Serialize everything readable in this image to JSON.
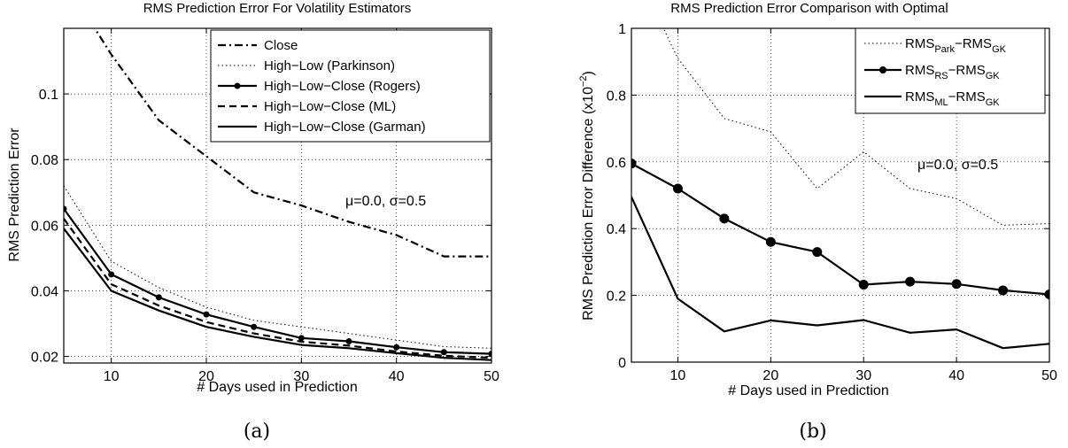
{
  "chart_data": [
    {
      "type": "line",
      "title": "RMS Prediction Error For Volatility Estimators",
      "xlabel": "# Days used in Prediction",
      "ylabel": "RMS Prediction Error",
      "xlim": [
        5,
        50
      ],
      "ylim": [
        0.018,
        0.12
      ],
      "xticks": [
        10,
        20,
        30,
        40,
        50
      ],
      "yticks": [
        0.02,
        0.04,
        0.06,
        0.08,
        0.1
      ],
      "ytick_labels": [
        "0.02",
        "0.04",
        "0.06",
        "0.08",
        "0.1"
      ],
      "grid": true,
      "legend_position": "top-right",
      "annotation": "μ=0.0, σ=0.5",
      "caption": "(a)",
      "x": [
        5,
        10,
        15,
        20,
        25,
        30,
        35,
        40,
        45,
        50
      ],
      "series": [
        {
          "name": "Close",
          "style": "dashdot",
          "marker": false,
          "color": "#000000",
          "values": [
            0.135,
            0.112,
            0.092,
            0.081,
            0.07,
            0.066,
            0.061,
            0.057,
            0.0505,
            0.0505
          ]
        },
        {
          "name": "High−Low (Parkinson)",
          "style": "dotted",
          "marker": false,
          "color": "#000000",
          "values": [
            0.072,
            0.049,
            0.041,
            0.035,
            0.031,
            0.029,
            0.027,
            0.025,
            0.023,
            0.0225
          ]
        },
        {
          "name": "High−Low−Close (Rogers)",
          "style": "solid",
          "marker": true,
          "color": "#000000",
          "values": [
            0.065,
            0.045,
            0.038,
            0.0328,
            0.029,
            0.0256,
            0.0246,
            0.0228,
            0.0213,
            0.0208
          ]
        },
        {
          "name": "High−Low−Close (ML)",
          "style": "dashed",
          "marker": false,
          "color": "#000000",
          "values": [
            0.062,
            0.042,
            0.0355,
            0.0305,
            0.027,
            0.0245,
            0.0233,
            0.0215,
            0.0202,
            0.0196
          ]
        },
        {
          "name": "High−Low−Close (Garman)",
          "style": "solid",
          "marker": false,
          "color": "#000000",
          "values": [
            0.059,
            0.04,
            0.034,
            0.029,
            0.026,
            0.0235,
            0.0225,
            0.021,
            0.0196,
            0.0189
          ]
        }
      ]
    },
    {
      "type": "line",
      "title": "RMS Prediction Error Comparison with Optimal",
      "xlabel": "# Days used in Prediction",
      "ylabel": "RMS Prediction Error Difference (x10",
      "ylabel_exponent": "−2",
      "ylabel_close": ")",
      "xlim": [
        5,
        50
      ],
      "ylim": [
        0,
        1
      ],
      "xticks": [
        10,
        20,
        30,
        40,
        50
      ],
      "yticks": [
        0,
        0.2,
        0.4,
        0.6,
        0.8,
        1
      ],
      "ytick_labels": [
        "0",
        "0.2",
        "0.4",
        "0.6",
        "0.8",
        "1"
      ],
      "grid": true,
      "legend_position": "top-right",
      "annotation": "μ=0.0, σ=0.5",
      "caption": "(b)",
      "x": [
        5,
        10,
        15,
        20,
        25,
        30,
        35,
        40,
        45,
        50
      ],
      "series": [
        {
          "name": "RMS_Park−RMS_GK",
          "legend": {
            "base": "RMS",
            "sub1": "Park",
            "mid": "−RMS",
            "sub2": "GK"
          },
          "style": "dotted",
          "marker": false,
          "color": "#000000",
          "values": [
            1.2,
            0.91,
            0.73,
            0.69,
            0.52,
            0.63,
            0.52,
            0.49,
            0.41,
            0.415
          ]
        },
        {
          "name": "RMS_RS−RMS_GK",
          "legend": {
            "base": "RMS",
            "sub1": "RS",
            "mid": "−RMS",
            "sub2": "GK"
          },
          "style": "solid",
          "marker": true,
          "color": "#000000",
          "values": [
            0.595,
            0.52,
            0.43,
            0.36,
            0.33,
            0.232,
            0.241,
            0.234,
            0.215,
            0.203
          ]
        },
        {
          "name": "RMS_ML−RMS_GK",
          "legend": {
            "base": "RMS",
            "sub1": "ML",
            "mid": "−RMS",
            "sub2": "GK"
          },
          "style": "solid",
          "marker": false,
          "color": "#000000",
          "values": [
            0.495,
            0.19,
            0.092,
            0.125,
            0.11,
            0.126,
            0.088,
            0.098,
            0.042,
            0.055
          ]
        }
      ]
    }
  ]
}
